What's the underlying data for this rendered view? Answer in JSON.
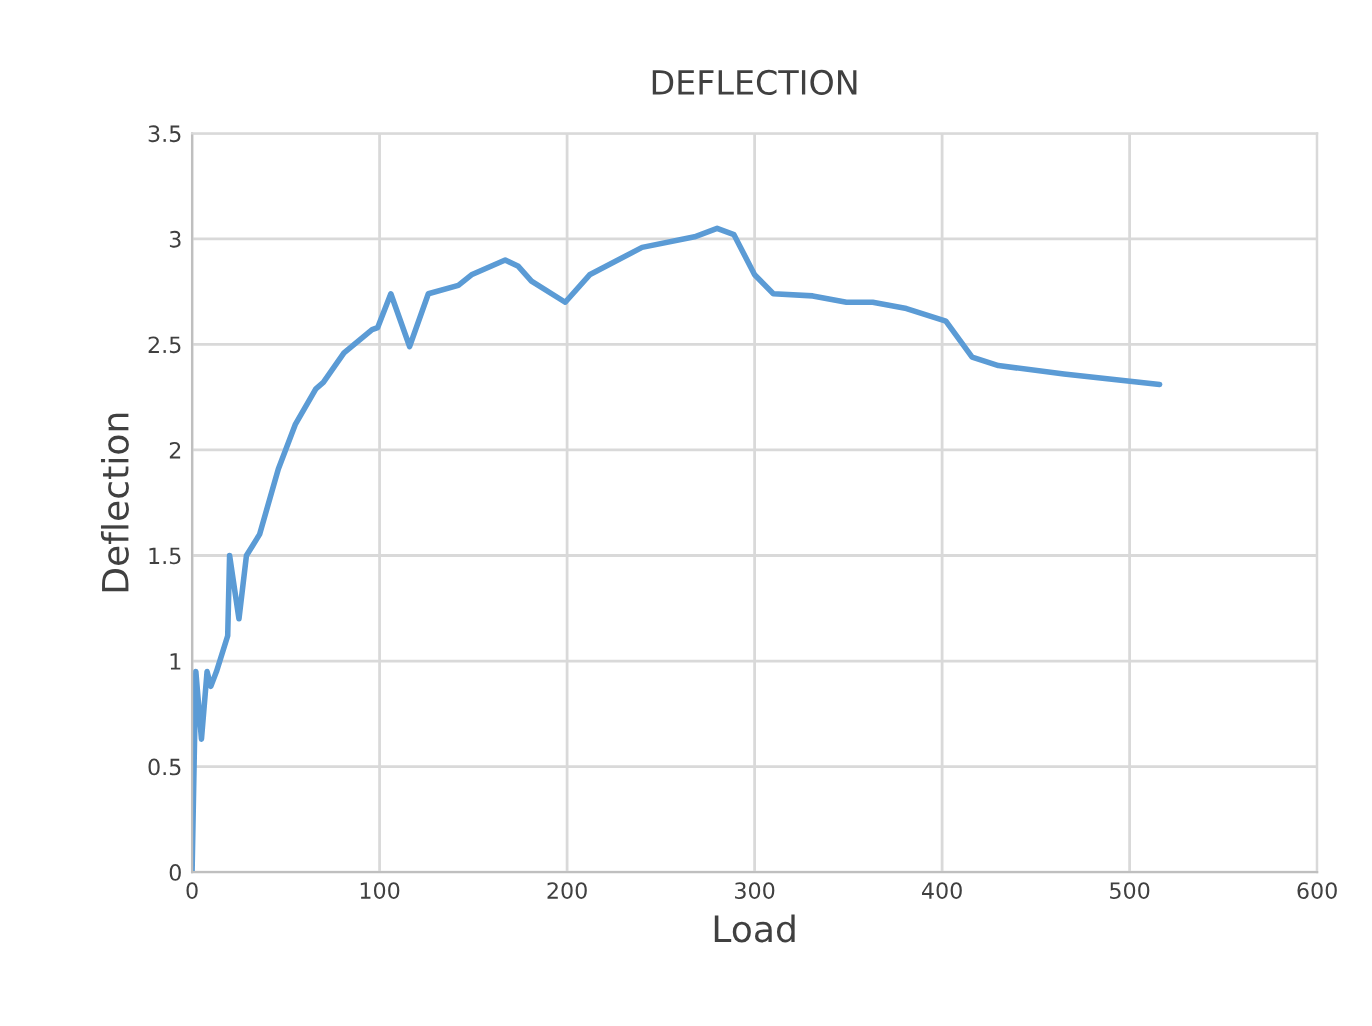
{
  "chart_data": {
    "type": "line",
    "title": "DEFLECTION",
    "xlabel": "Load",
    "ylabel": "Deflection",
    "xlim": [
      0,
      600
    ],
    "xticks": [
      0,
      100,
      200,
      300,
      400,
      500,
      600
    ],
    "ylim": [
      0,
      3.5
    ],
    "yticks": [
      0,
      0.5,
      1,
      1.5,
      2,
      2.5,
      3,
      3.5
    ],
    "grid": true,
    "line_style": "solid",
    "series": [
      {
        "color": "#5b9bd5",
        "x": [
          0,
          2,
          5,
          8,
          10,
          13,
          19,
          20,
          25,
          29,
          36,
          46,
          55,
          66,
          70,
          81,
          96,
          99,
          106,
          116,
          126,
          142,
          149,
          167,
          174,
          181,
          199,
          212,
          240,
          268,
          280,
          289,
          300,
          310,
          331,
          349,
          363,
          381,
          402,
          416,
          430,
          465,
          516
        ],
        "values": [
          0,
          0.95,
          0.63,
          0.95,
          0.88,
          0.95,
          1.12,
          1.5,
          1.2,
          1.5,
          1.6,
          1.91,
          2.12,
          2.29,
          2.32,
          2.46,
          2.57,
          2.58,
          2.74,
          2.49,
          2.74,
          2.78,
          2.83,
          2.9,
          2.87,
          2.8,
          2.7,
          2.83,
          2.96,
          3.01,
          3.05,
          3.02,
          2.83,
          2.74,
          2.73,
          2.7,
          2.7,
          2.67,
          2.61,
          2.44,
          2.4,
          2.36,
          2.31
        ]
      }
    ]
  }
}
